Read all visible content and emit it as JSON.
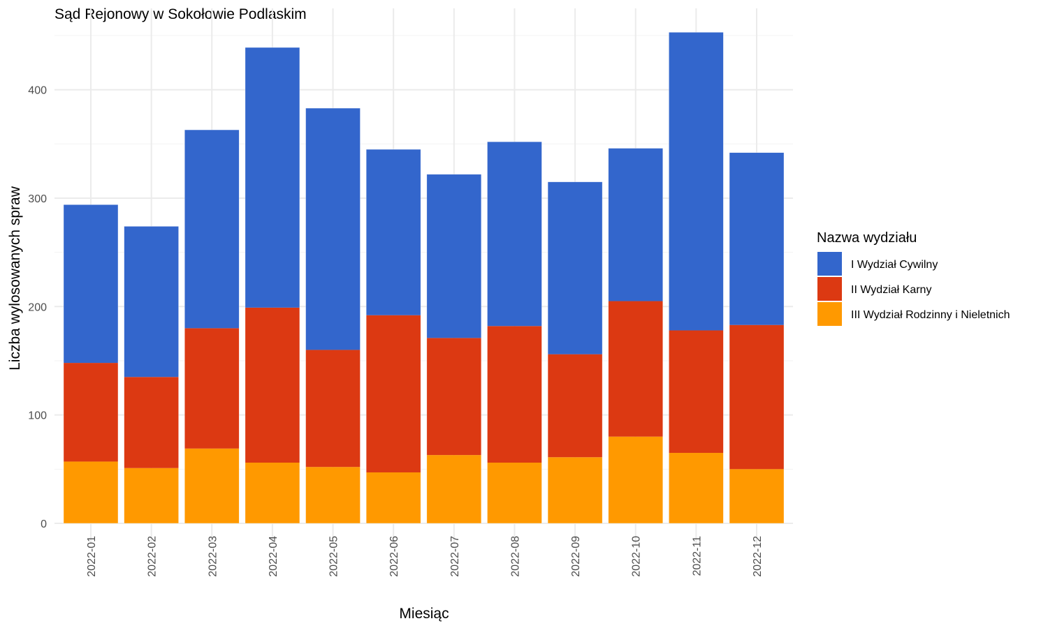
{
  "chart_data": {
    "type": "bar",
    "stacked": true,
    "title": "Sąd Rejonowy w Sokołowie Podlaskim",
    "xlabel": "Miesiąc",
    "ylabel": "Liczba wylosowanych spraw",
    "ylim": [
      0,
      460
    ],
    "yticks": [
      0,
      100,
      200,
      300,
      400
    ],
    "grid": true,
    "legend_title": "Nazwa wydziału",
    "legend_position": "right",
    "categories": [
      "2022-01",
      "2022-02",
      "2022-03",
      "2022-04",
      "2022-05",
      "2022-06",
      "2022-07",
      "2022-08",
      "2022-09",
      "2022-10",
      "2022-11",
      "2022-12"
    ],
    "series": [
      {
        "name": "I Wydział Cywilny",
        "color": "#3366CC",
        "values": [
          146,
          139,
          183,
          240,
          223,
          153,
          151,
          170,
          159,
          141,
          275,
          159
        ]
      },
      {
        "name": "II Wydział Karny",
        "color": "#DC3912",
        "values": [
          91,
          84,
          111,
          143,
          108,
          145,
          108,
          126,
          95,
          125,
          113,
          133
        ]
      },
      {
        "name": "III Wydział Rodzinny i Nieletnich",
        "color": "#FF9900",
        "values": [
          57,
          51,
          69,
          56,
          52,
          47,
          63,
          56,
          61,
          80,
          65,
          50
        ]
      }
    ]
  }
}
